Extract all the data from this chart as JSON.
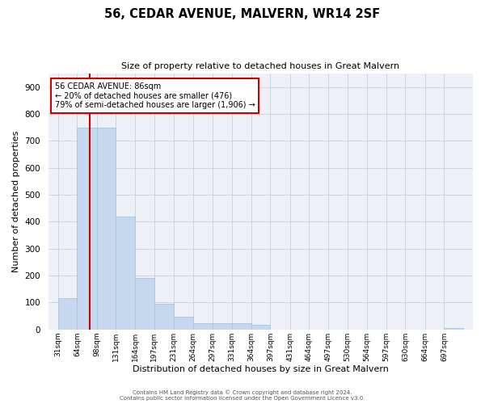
{
  "title": "56, CEDAR AVENUE, MALVERN, WR14 2SF",
  "subtitle": "Size of property relative to detached houses in Great Malvern",
  "xlabel": "Distribution of detached houses by size in Great Malvern",
  "ylabel": "Number of detached properties",
  "bar_labels": [
    "31sqm",
    "64sqm",
    "98sqm",
    "131sqm",
    "164sqm",
    "197sqm",
    "231sqm",
    "264sqm",
    "297sqm",
    "331sqm",
    "364sqm",
    "397sqm",
    "431sqm",
    "464sqm",
    "497sqm",
    "530sqm",
    "564sqm",
    "597sqm",
    "630sqm",
    "664sqm",
    "697sqm"
  ],
  "bar_values": [
    115,
    750,
    750,
    420,
    190,
    95,
    47,
    23,
    22,
    22,
    17,
    0,
    0,
    0,
    0,
    0,
    0,
    0,
    0,
    0,
    5
  ],
  "bar_color": "#c5d8ed",
  "bar_edgecolor": "#a8c4e0",
  "ylim": [
    0,
    950
  ],
  "yticks": [
    0,
    100,
    200,
    300,
    400,
    500,
    600,
    700,
    800,
    900
  ],
  "bin_edges": [
    31,
    64,
    98,
    131,
    164,
    197,
    231,
    264,
    297,
    331,
    364,
    397,
    431,
    464,
    497,
    530,
    564,
    597,
    630,
    664,
    697,
    730
  ],
  "property_sqm": 86,
  "annotation_line0": "56 CEDAR AVENUE: 86sqm",
  "annotation_line1": "← 20% of detached houses are smaller (476)",
  "annotation_line2": "79% of semi-detached houses are larger (1,906) →",
  "annotation_box_color": "#cc0000",
  "vline_color": "#cc0000",
  "bg_color": "#eef2f8",
  "bar_bg_color": "#eef2f8",
  "footer_line1": "Contains HM Land Registry data © Crown copyright and database right 2024.",
  "footer_line2": "Contains public sector information licensed under the Open Government Licence v3.0.",
  "grid_color": "#c8d0de"
}
